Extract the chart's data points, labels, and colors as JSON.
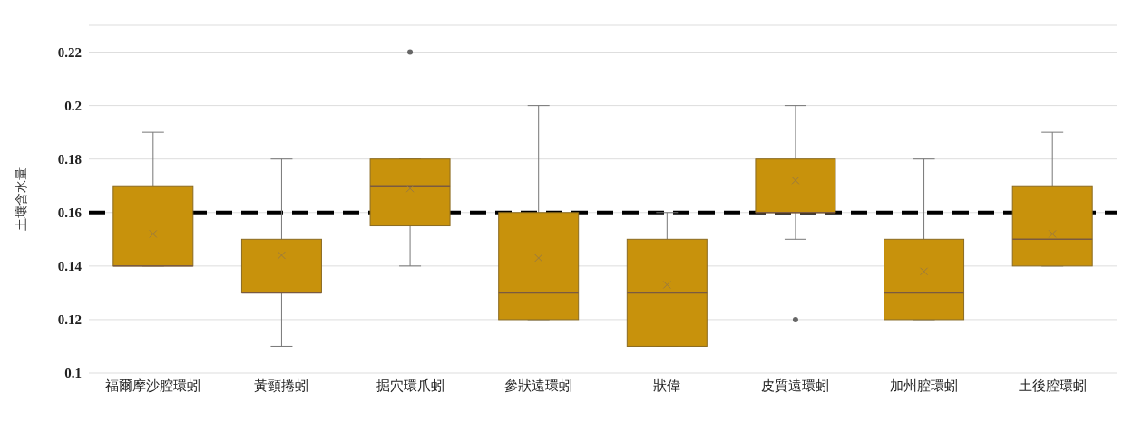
{
  "chart_data": {
    "type": "box",
    "ylabel": "土壤含水量",
    "categories": [
      "福爾摩沙腔環蚓",
      "黃頸捲蚓",
      "掘穴環爪蚓",
      "參狀遠環蚓",
      "狀偉",
      "皮質遠環蚓",
      "加州腔環蚓",
      "土後腔環蚓"
    ],
    "color": "#c8920c",
    "boxes": [
      {
        "low": 0.14,
        "q1": 0.14,
        "median": 0.14,
        "q3": 0.17,
        "high": 0.19,
        "mean": 0.152
      },
      {
        "low": 0.11,
        "q1": 0.13,
        "median": 0.13,
        "q3": 0.15,
        "high": 0.18,
        "mean": 0.144
      },
      {
        "low": 0.14,
        "q1": 0.155,
        "median": 0.17,
        "q3": 0.18,
        "high": 0.18,
        "mean": 0.169,
        "outliers": [
          0.22
        ]
      },
      {
        "low": 0.12,
        "q1": 0.12,
        "median": 0.13,
        "q3": 0.16,
        "high": 0.2,
        "mean": 0.143
      },
      {
        "low": 0.11,
        "q1": 0.11,
        "median": 0.13,
        "q3": 0.15,
        "high": 0.16,
        "mean": 0.133
      },
      {
        "low": 0.15,
        "q1": 0.16,
        "median": 0.16,
        "q3": 0.18,
        "high": 0.2,
        "mean": 0.172,
        "outliers": [
          0.12
        ]
      },
      {
        "low": 0.12,
        "q1": 0.12,
        "median": 0.13,
        "q3": 0.15,
        "high": 0.18,
        "mean": 0.138
      },
      {
        "low": 0.14,
        "q1": 0.14,
        "median": 0.15,
        "q3": 0.17,
        "high": 0.19,
        "mean": 0.152
      }
    ],
    "ylim": [
      0.1,
      0.23
    ],
    "yticks": [
      0.1,
      0.12,
      0.14,
      0.16,
      0.18,
      0.2,
      0.22
    ],
    "grid": "y",
    "ref_lines": [
      {
        "axis": "y",
        "value": 0.16,
        "color": "#000000",
        "line_style": "dashed"
      }
    ]
  }
}
